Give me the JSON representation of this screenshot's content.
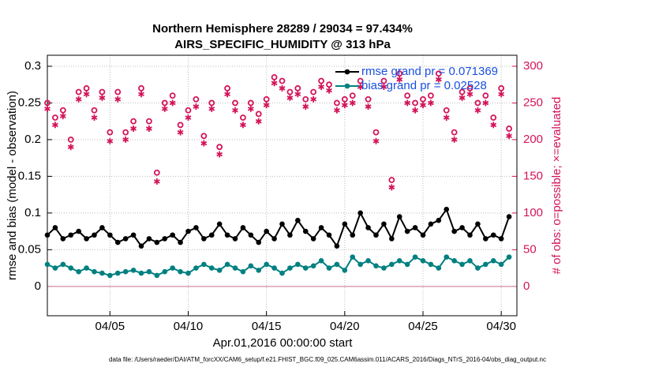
{
  "chart_data": {
    "type": "line",
    "title": "Northern Hemisphere 28289 / 29034 = 97.434%",
    "subtitle": "AIRS_SPECIFIC_HUMIDITY @ 313 hPa",
    "xlabel": "Apr.01,2016 00:00:00 start",
    "ylabel": "rmse and bias (model - observation)",
    "y2label": "# of obs: o=possible; ×=evaluated",
    "footnote": "data file: /Users/raeder/DAI/ATM_forcXX/CAM6_setup/f.e21.FHIST_BGC.f09_025.CAM6assim.011/ACARS_2016/Diags_NTrS_2016-04/obs_diag_output.nc",
    "x": [
      0,
      0.5,
      1,
      1.5,
      2,
      2.5,
      3,
      3.5,
      4,
      4.5,
      5,
      5.5,
      6,
      6.5,
      7,
      7.5,
      8,
      8.5,
      9,
      9.5,
      10,
      10.5,
      11,
      11.5,
      12,
      12.5,
      13,
      13.5,
      14,
      14.5,
      15,
      15.5,
      16,
      16.5,
      17,
      17.5,
      18,
      18.5,
      19,
      19.5,
      20,
      20.5,
      21,
      21.5,
      22,
      22.5,
      23,
      23.5,
      24,
      24.5,
      25,
      25.5,
      26,
      26.5,
      27,
      27.5,
      28,
      28.5,
      29,
      29.5
    ],
    "xlim": [
      0,
      30
    ],
    "xticks": [
      {
        "value": 4,
        "label": "04/05"
      },
      {
        "value": 9,
        "label": "04/10"
      },
      {
        "value": 14,
        "label": "04/15"
      },
      {
        "value": 19,
        "label": "04/20"
      },
      {
        "value": 24,
        "label": "04/25"
      },
      {
        "value": 29,
        "label": "04/30"
      }
    ],
    "ylim": [
      -0.04,
      0.315
    ],
    "yticks": [
      0,
      0.05,
      0.1,
      0.15,
      0.2,
      0.25,
      0.3
    ],
    "y2lim": [
      -40,
      315
    ],
    "y2ticks": [
      0,
      50,
      100,
      150,
      200,
      250,
      300
    ],
    "grid": true,
    "series": [
      {
        "name": "rmse grand pr = 0.071369",
        "color": "#000000",
        "marker": "dot",
        "values": [
          0.07,
          0.08,
          0.065,
          0.07,
          0.075,
          0.065,
          0.07,
          0.08,
          0.07,
          0.06,
          0.065,
          0.07,
          0.055,
          0.065,
          0.06,
          0.065,
          0.07,
          0.06,
          0.075,
          0.08,
          0.065,
          0.07,
          0.085,
          0.07,
          0.065,
          0.08,
          0.07,
          0.06,
          0.075,
          0.065,
          0.085,
          0.07,
          0.09,
          0.075,
          0.065,
          0.08,
          0.07,
          0.055,
          0.085,
          0.07,
          0.1,
          0.08,
          0.07,
          0.085,
          0.065,
          0.095,
          0.075,
          0.08,
          0.07,
          0.085,
          0.09,
          0.105,
          0.075,
          0.08,
          0.07,
          0.085,
          0.065,
          0.07,
          0.065,
          0.095
        ]
      },
      {
        "name": "bias grand pr = 0.02528",
        "color": "#008080",
        "marker": "dot",
        "values": [
          0.03,
          0.025,
          0.03,
          0.025,
          0.02,
          0.025,
          0.02,
          0.018,
          0.015,
          0.018,
          0.02,
          0.022,
          0.018,
          0.02,
          0.015,
          0.02,
          0.025,
          0.02,
          0.018,
          0.025,
          0.03,
          0.025,
          0.022,
          0.03,
          0.025,
          0.02,
          0.028,
          0.022,
          0.03,
          0.025,
          0.018,
          0.025,
          0.03,
          0.025,
          0.028,
          0.035,
          0.025,
          0.03,
          0.022,
          0.04,
          0.03,
          0.035,
          0.028,
          0.025,
          0.03,
          0.035,
          0.03,
          0.04,
          0.035,
          0.03,
          0.025,
          0.04,
          0.035,
          0.03,
          0.035,
          0.025,
          0.03,
          0.035,
          0.03,
          0.04
        ]
      },
      {
        "name": "possible",
        "color": "#d4145a",
        "marker": "circle",
        "axis": "y2",
        "values": [
          250,
          230,
          240,
          200,
          265,
          270,
          240,
          265,
          210,
          265,
          210,
          225,
          270,
          225,
          155,
          250,
          260,
          220,
          240,
          255,
          205,
          250,
          190,
          270,
          250,
          230,
          250,
          235,
          255,
          285,
          280,
          265,
          270,
          255,
          265,
          280,
          275,
          250,
          255,
          260,
          280,
          255,
          210,
          280,
          145,
          290,
          260,
          250,
          255,
          260,
          290,
          240,
          210,
          265,
          270,
          250,
          260,
          230,
          270,
          215
        ]
      },
      {
        "name": "evaluated",
        "color": "#d4145a",
        "marker": "star",
        "axis": "y2",
        "values": [
          242,
          220,
          232,
          190,
          255,
          262,
          230,
          257,
          198,
          255,
          200,
          215,
          262,
          215,
          143,
          242,
          250,
          210,
          230,
          245,
          195,
          242,
          180,
          262,
          240,
          220,
          242,
          225,
          247,
          277,
          270,
          257,
          262,
          245,
          255,
          272,
          267,
          240,
          247,
          250,
          272,
          245,
          198,
          272,
          135,
          282,
          250,
          240,
          247,
          250,
          282,
          230,
          200,
          257,
          262,
          240,
          250,
          220,
          262,
          205
        ]
      }
    ]
  }
}
